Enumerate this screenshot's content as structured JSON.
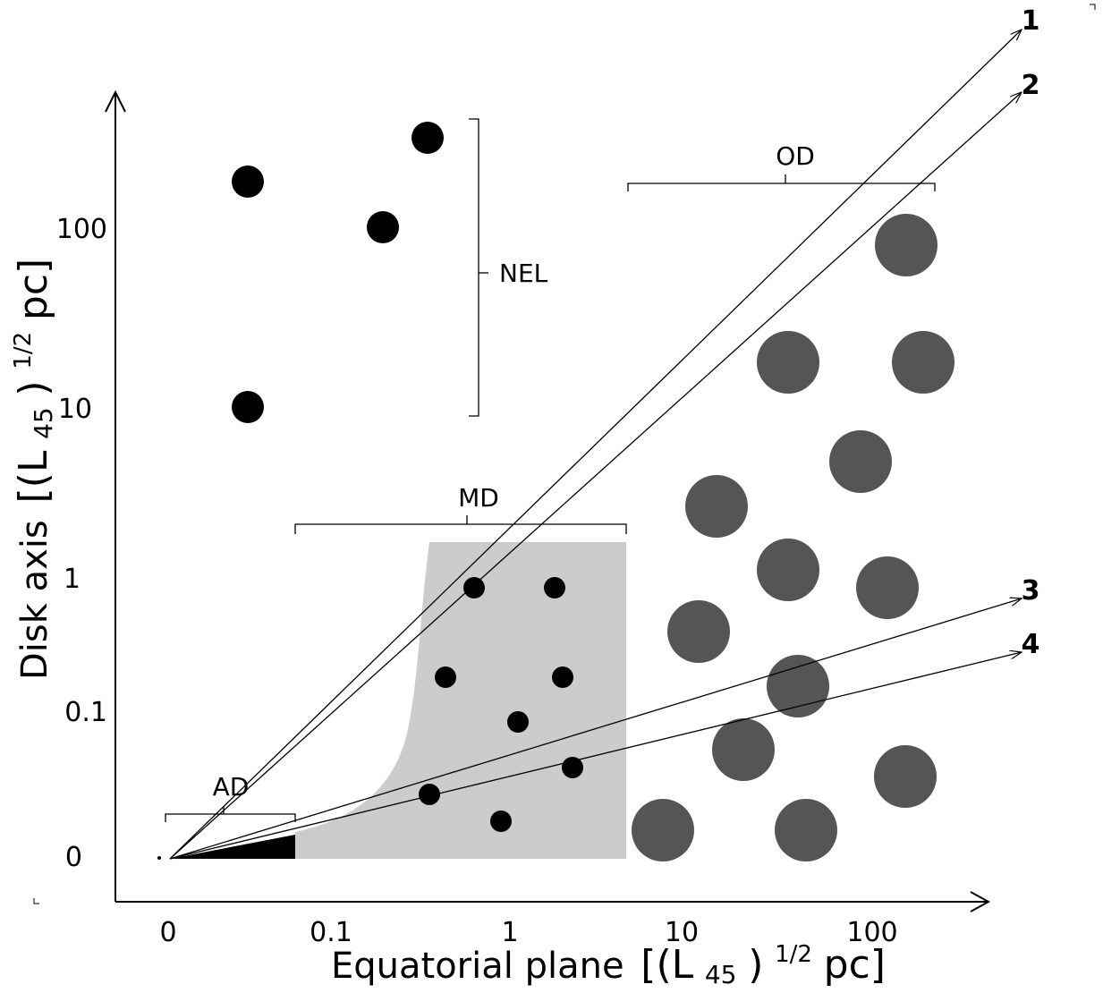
{
  "diagram": {
    "x_axis": {
      "title": "Equatorial plane",
      "unit_open": "[(L",
      "unit_sub": "45",
      "unit_paren": ")",
      "unit_sup": "1/2",
      "unit_close": " pc]",
      "ticks": [
        "0",
        "0.1",
        "1",
        "10",
        "100"
      ]
    },
    "y_axis": {
      "title": "Disk axis",
      "unit_open": "[(L",
      "unit_sub": "45",
      "unit_paren": ")",
      "unit_sup": "1/2",
      "unit_close": " pc]",
      "ticks": [
        "100",
        "10",
        "1",
        "0.1",
        "0"
      ]
    },
    "regions": {
      "nel": "NEL",
      "od": "OD",
      "md": "MD",
      "ad": "AD"
    },
    "rays": [
      "1",
      "2",
      "3",
      "4"
    ],
    "colors": {
      "nel_dots": "#000000",
      "md_dots": "#000000",
      "od_dots": "#555555",
      "md_fill": "#cccccc",
      "ad_fill": "#000000",
      "axes": "#000000"
    }
  }
}
